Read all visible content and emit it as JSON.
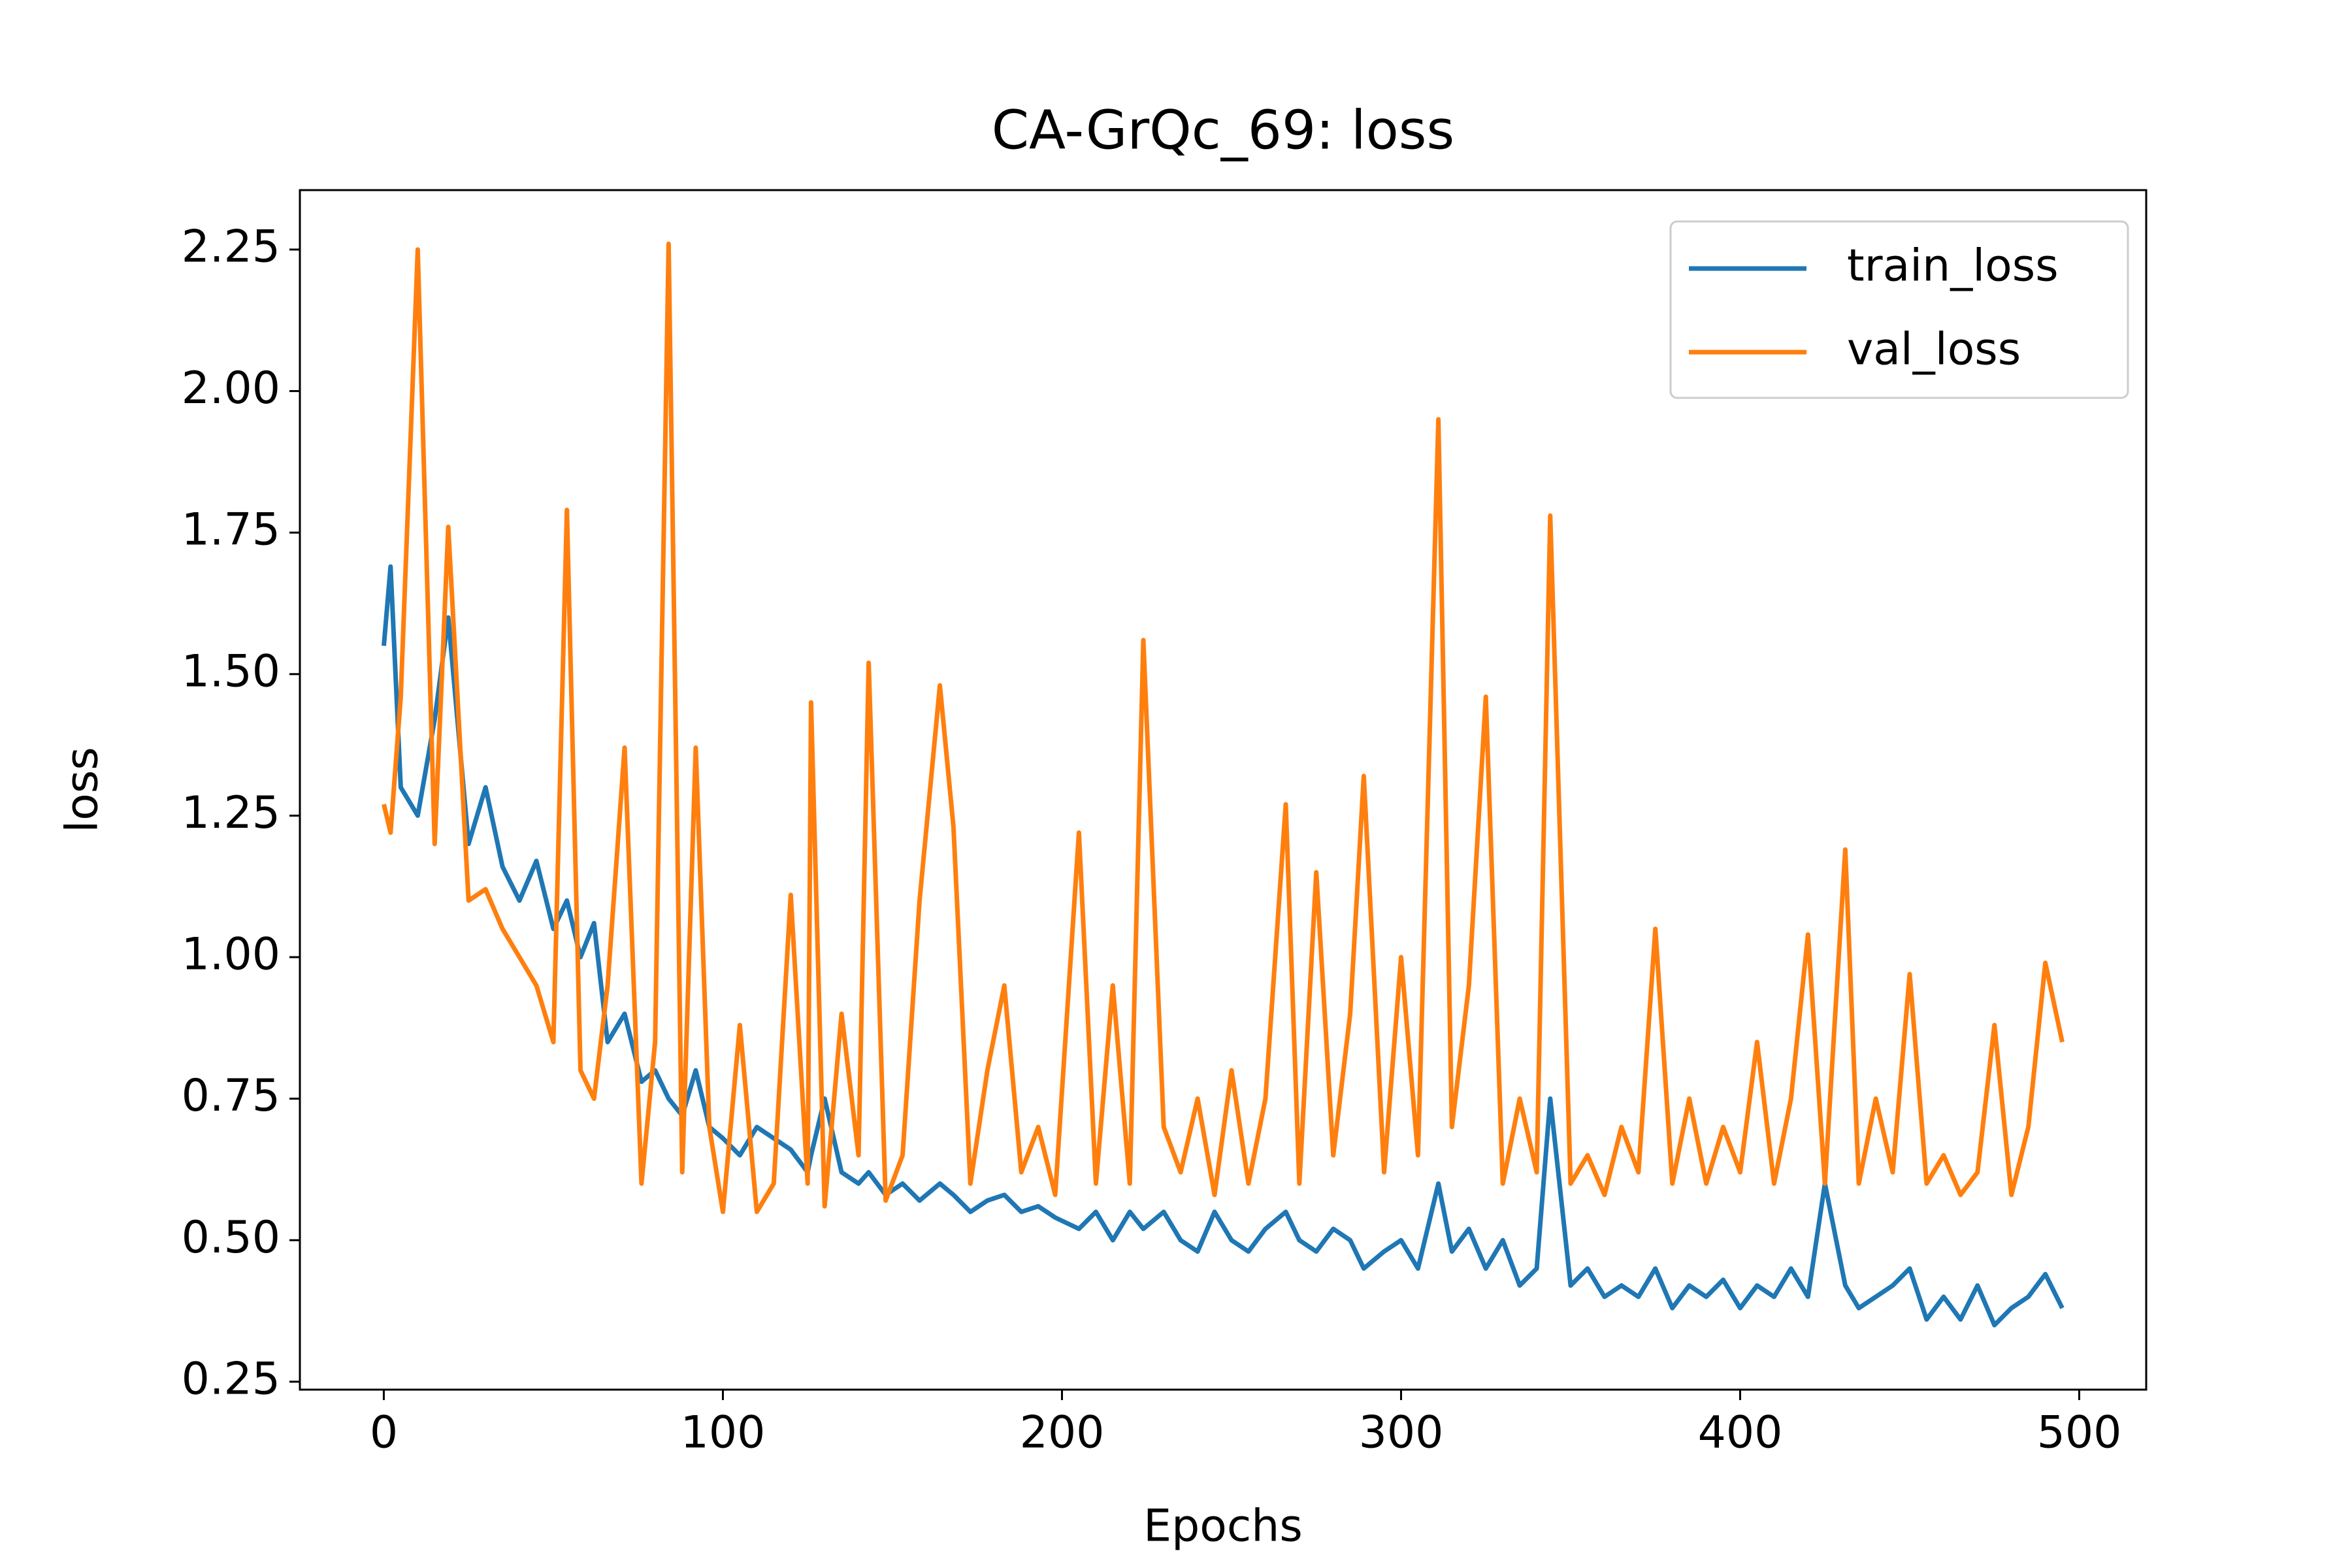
{
  "chart_data": {
    "type": "line",
    "title": "CA-GrQc_69: loss",
    "x_label": "Epochs",
    "y_label": "loss",
    "x": [
      0,
      2,
      5,
      10,
      15,
      19,
      25,
      30,
      35,
      40,
      45,
      50,
      54,
      58,
      62,
      66,
      71,
      76,
      80,
      84,
      88,
      92,
      96,
      100,
      105,
      110,
      115,
      120,
      125,
      126,
      130,
      135,
      140,
      143,
      148,
      153,
      158,
      164,
      168,
      173,
      178,
      183,
      188,
      193,
      198,
      205,
      210,
      215,
      220,
      224,
      230,
      235,
      240,
      245,
      250,
      255,
      260,
      266,
      270,
      275,
      280,
      285,
      289,
      295,
      300,
      305,
      311,
      315,
      320,
      325,
      330,
      335,
      340,
      344,
      350,
      355,
      360,
      365,
      370,
      375,
      380,
      385,
      390,
      395,
      400,
      405,
      410,
      415,
      420,
      425,
      431,
      435,
      440,
      445,
      450,
      455,
      460,
      465,
      470,
      475,
      480,
      485,
      490,
      495
    ],
    "series": [
      {
        "name": "train_loss",
        "color": "#1f77b4",
        "values": [
          1.55,
          1.69,
          1.3,
          1.25,
          1.42,
          1.6,
          1.2,
          1.3,
          1.16,
          1.1,
          1.17,
          1.05,
          1.1,
          1.0,
          1.06,
          0.85,
          0.9,
          0.78,
          0.8,
          0.75,
          0.72,
          0.8,
          0.7,
          0.68,
          0.65,
          0.7,
          0.68,
          0.66,
          0.62,
          0.65,
          0.75,
          0.62,
          0.6,
          0.62,
          0.58,
          0.6,
          0.57,
          0.6,
          0.58,
          0.55,
          0.57,
          0.58,
          0.55,
          0.56,
          0.54,
          0.52,
          0.55,
          0.5,
          0.55,
          0.52,
          0.55,
          0.5,
          0.48,
          0.55,
          0.5,
          0.48,
          0.52,
          0.55,
          0.5,
          0.48,
          0.52,
          0.5,
          0.45,
          0.48,
          0.5,
          0.45,
          0.6,
          0.48,
          0.52,
          0.45,
          0.5,
          0.42,
          0.45,
          0.75,
          0.42,
          0.45,
          0.4,
          0.42,
          0.4,
          0.45,
          0.38,
          0.42,
          0.4,
          0.43,
          0.38,
          0.42,
          0.4,
          0.45,
          0.4,
          0.6,
          0.42,
          0.38,
          0.4,
          0.42,
          0.45,
          0.36,
          0.4,
          0.36,
          0.42,
          0.35,
          0.38,
          0.4,
          0.44,
          0.38
        ]
      },
      {
        "name": "val_loss",
        "color": "#ff7f0e",
        "values": [
          1.27,
          1.22,
          1.46,
          2.25,
          1.2,
          1.76,
          1.1,
          1.12,
          1.05,
          1.0,
          0.95,
          0.85,
          1.79,
          0.8,
          0.75,
          0.95,
          1.37,
          0.6,
          0.85,
          2.26,
          0.62,
          1.37,
          0.7,
          0.55,
          0.88,
          0.55,
          0.6,
          1.11,
          0.6,
          1.45,
          0.56,
          0.9,
          0.65,
          1.52,
          0.57,
          0.65,
          1.1,
          1.48,
          1.23,
          0.6,
          0.8,
          0.95,
          0.62,
          0.7,
          0.58,
          1.22,
          0.6,
          0.95,
          0.6,
          1.56,
          0.7,
          0.62,
          0.75,
          0.58,
          0.8,
          0.6,
          0.75,
          1.27,
          0.6,
          1.15,
          0.65,
          0.9,
          1.32,
          0.62,
          1.0,
          0.65,
          1.95,
          0.7,
          0.95,
          1.46,
          0.6,
          0.75,
          0.62,
          1.78,
          0.6,
          0.65,
          0.58,
          0.7,
          0.62,
          1.05,
          0.6,
          0.75,
          0.6,
          0.7,
          0.62,
          0.85,
          0.6,
          0.75,
          1.04,
          0.6,
          1.19,
          0.6,
          0.75,
          0.62,
          0.97,
          0.6,
          0.65,
          0.58,
          0.62,
          0.88,
          0.58,
          0.7,
          0.99,
          0.85
        ]
      }
    ],
    "xlim": [
      -24.75,
      519.75
    ],
    "ylim": [
      0.236,
      2.355
    ],
    "xticks": [
      0,
      100,
      200,
      300,
      400,
      500
    ],
    "yticks": [
      {
        "value": 0.25,
        "label": "0.25"
      },
      {
        "value": 0.5,
        "label": "0.50"
      },
      {
        "value": 0.75,
        "label": "0.75"
      },
      {
        "value": 1.0,
        "label": "1.00"
      },
      {
        "value": 1.25,
        "label": "1.25"
      },
      {
        "value": 1.5,
        "label": "1.50"
      },
      {
        "value": 1.75,
        "label": "1.75"
      },
      {
        "value": 2.0,
        "label": "2.00"
      },
      {
        "value": 2.25,
        "label": "2.25"
      }
    ],
    "legend": "upper right",
    "grid": false
  }
}
